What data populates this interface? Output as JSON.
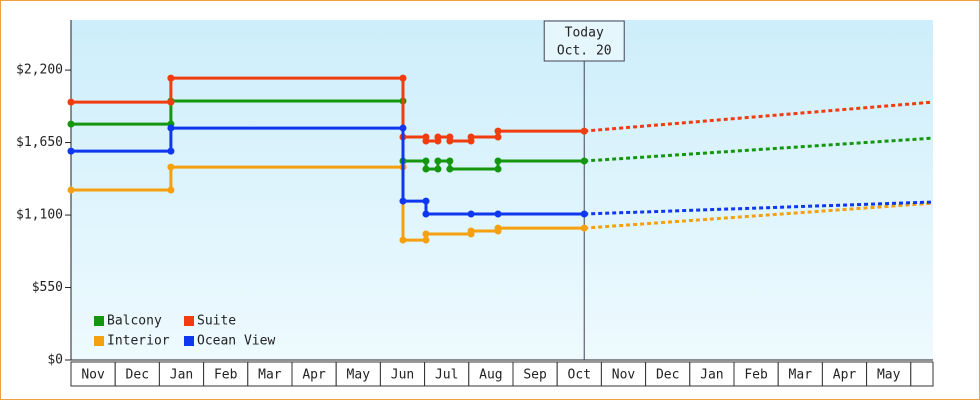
{
  "chart_data": {
    "type": "step-line",
    "categories": [
      "Nov",
      "Dec",
      "Jan",
      "Feb",
      "Mar",
      "Apr",
      "May",
      "Jun",
      "Jul",
      "Aug",
      "Sep",
      "Oct",
      "Nov",
      "Dec",
      "Jan",
      "Feb",
      "Mar",
      "Apr",
      "May"
    ],
    "xlim": [
      0,
      19.5
    ],
    "ylim": [
      0,
      2580
    ],
    "yticks": [
      {
        "value": 0,
        "label": "$0"
      },
      {
        "value": 550,
        "label": "$550"
      },
      {
        "value": 1100,
        "label": "$1,100"
      },
      {
        "value": 1650,
        "label": "$1,650"
      },
      {
        "value": 2200,
        "label": "$2,200"
      }
    ],
    "annotation": {
      "x": 11.61,
      "lines": [
        "Today",
        "Oct. 20"
      ]
    },
    "series": [
      {
        "name": "Balcony",
        "color": "#14960f",
        "x": [
          0,
          2.26,
          2.26,
          7.51,
          7.51,
          8.03,
          8.03,
          8.3,
          8.3,
          8.57,
          8.57,
          9.66,
          9.66,
          11.61
        ],
        "values": [
          1790,
          1790,
          1965,
          1965,
          1510,
          1510,
          1449,
          1449,
          1510,
          1510,
          1449,
          1449,
          1510,
          1510
        ],
        "forecast": {
          "x": [
            11.61,
            19.5
          ],
          "values": [
            1510,
            1684
          ]
        }
      },
      {
        "name": "Suite",
        "color": "#f03c0f",
        "x": [
          0,
          2.26,
          2.26,
          7.51,
          7.51,
          8.03,
          8.03,
          8.3,
          8.3,
          8.57,
          8.57,
          9.05,
          9.05,
          9.66,
          9.66,
          11.61
        ],
        "values": [
          1957,
          1957,
          2139,
          2139,
          1692,
          1692,
          1662,
          1662,
          1692,
          1692,
          1662,
          1662,
          1692,
          1692,
          1737,
          1737
        ],
        "forecast": {
          "x": [
            11.61,
            19.5
          ],
          "values": [
            1737,
            1957
          ]
        }
      },
      {
        "name": "Interior",
        "color": "#f5a00f",
        "x": [
          0,
          2.26,
          2.26,
          7.51,
          7.51,
          8.03,
          8.03,
          9.05,
          9.05,
          9.66,
          9.66,
          11.61
        ],
        "values": [
          1290,
          1290,
          1464,
          1464,
          910,
          910,
          956,
          956,
          979,
          979,
          1001,
          1001
        ],
        "forecast": {
          "x": [
            11.61,
            19.5
          ],
          "values": [
            1001,
            1190
          ]
        }
      },
      {
        "name": "Ocean View",
        "color": "#0f37f0",
        "x": [
          0,
          2.26,
          2.26,
          7.51,
          7.51,
          8.03,
          8.03,
          9.05,
          9.66,
          11.61
        ],
        "values": [
          1585,
          1585,
          1760,
          1760,
          1206,
          1206,
          1108,
          1108,
          1108,
          1108
        ],
        "forecast": {
          "x": [
            11.61,
            19.5
          ],
          "values": [
            1108,
            1199
          ]
        }
      }
    ]
  }
}
